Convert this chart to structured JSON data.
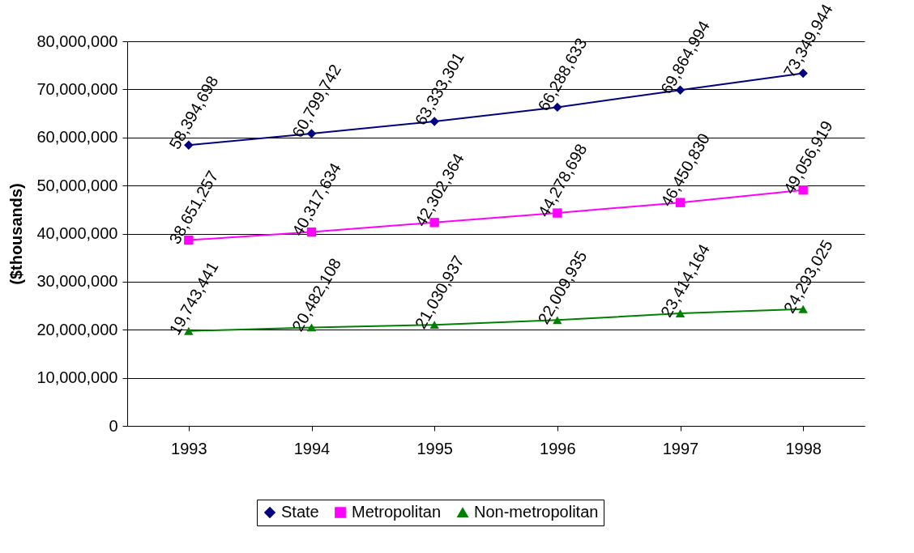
{
  "chart_data": {
    "type": "line",
    "ylabel": "($thousands)",
    "categories": [
      "1993",
      "1994",
      "1995",
      "1996",
      "1997",
      "1998"
    ],
    "series": [
      {
        "name": "State",
        "color": "#000080",
        "marker": "diamond",
        "values": [
          58394698,
          60799742,
          63333301,
          66288633,
          69864994,
          73349944
        ],
        "value_labels": [
          "58,394,698",
          "60,799,742",
          "63,333,301",
          "66,288,633",
          "69,864,994",
          "73,349,944"
        ]
      },
      {
        "name": "Metropolitan",
        "color": "#ff00ff",
        "marker": "square",
        "values": [
          38651257,
          40317634,
          42302364,
          44278698,
          46450830,
          49056919
        ],
        "value_labels": [
          "38,651,257",
          "40,317,634",
          "42,302,364",
          "44,278,698",
          "46,450,830",
          "49,056,919"
        ]
      },
      {
        "name": "Non-metropolitan",
        "color": "#008000",
        "marker": "triangle",
        "values": [
          19743441,
          20482108,
          21030937,
          22009935,
          23414164,
          24293025
        ],
        "value_labels": [
          "19,743,441",
          "20,482,108",
          "21,030,937",
          "22,009,935",
          "23,414,164",
          "24,293,025"
        ]
      }
    ],
    "ylim": [
      0,
      80000000
    ],
    "yticks": [
      0,
      {
        "value": 10000000,
        "label": "10,000,000"
      },
      {
        "value": 20000000,
        "label": "20,000,000"
      },
      {
        "value": 30000000,
        "label": "30,000,000"
      },
      {
        "value": 40000000,
        "label": "40,000,000"
      },
      {
        "value": 50000000,
        "label": "50,000,000"
      },
      {
        "value": 60000000,
        "label": "60,000,000"
      },
      {
        "value": 70000000,
        "label": "70,000,000"
      },
      {
        "value": 80000000,
        "label": "80,000,000"
      }
    ],
    "grid": "y",
    "legend": "bottom",
    "line_style": "solid"
  }
}
